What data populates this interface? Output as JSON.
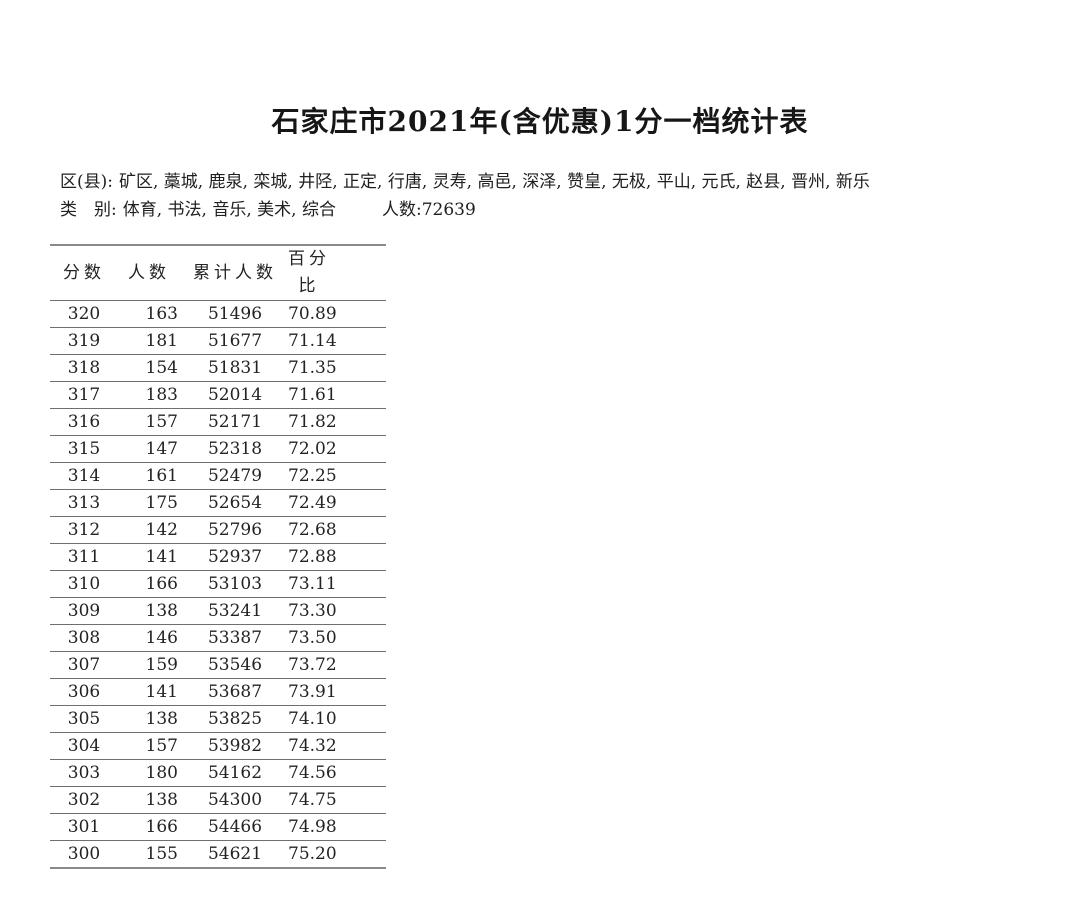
{
  "page": {
    "title": "石家庄市2021年(含优惠)1分一档统计表",
    "background_color": "#ffffff",
    "text_color": "#1c1c1c",
    "rule_color": "#8a8a8a"
  },
  "meta": {
    "district_label": "区(县):",
    "districts": "矿区, 藁城, 鹿泉, 栾城, 井陉, 正定, 行唐, 灵寿, 高邑, 深泽, 赞皇, 无极, 平山, 元氏, 赵县, 晋州, 新乐",
    "category_label": "类　别:",
    "categories": "体育, 书法, 音乐, 美术, 综合",
    "total_label": "人数:",
    "total_value": "72639"
  },
  "chart_data": {
    "type": "table",
    "title": "石家庄市2021年(含优惠)1分一档统计表",
    "columns": [
      "分数",
      "人数",
      "累计人数",
      "百分比"
    ],
    "rows": [
      [
        "320",
        "163",
        "51496",
        "70.89"
      ],
      [
        "319",
        "181",
        "51677",
        "71.14"
      ],
      [
        "318",
        "154",
        "51831",
        "71.35"
      ],
      [
        "317",
        "183",
        "52014",
        "71.61"
      ],
      [
        "316",
        "157",
        "52171",
        "71.82"
      ],
      [
        "315",
        "147",
        "52318",
        "72.02"
      ],
      [
        "314",
        "161",
        "52479",
        "72.25"
      ],
      [
        "313",
        "175",
        "52654",
        "72.49"
      ],
      [
        "312",
        "142",
        "52796",
        "72.68"
      ],
      [
        "311",
        "141",
        "52937",
        "72.88"
      ],
      [
        "310",
        "166",
        "53103",
        "73.11"
      ],
      [
        "309",
        "138",
        "53241",
        "73.30"
      ],
      [
        "308",
        "146",
        "53387",
        "73.50"
      ],
      [
        "307",
        "159",
        "53546",
        "73.72"
      ],
      [
        "306",
        "141",
        "53687",
        "73.91"
      ],
      [
        "305",
        "138",
        "53825",
        "74.10"
      ],
      [
        "304",
        "157",
        "53982",
        "74.32"
      ],
      [
        "303",
        "180",
        "54162",
        "74.56"
      ],
      [
        "302",
        "138",
        "54300",
        "74.75"
      ],
      [
        "301",
        "166",
        "54466",
        "74.98"
      ],
      [
        "300",
        "155",
        "54621",
        "75.20"
      ]
    ]
  }
}
